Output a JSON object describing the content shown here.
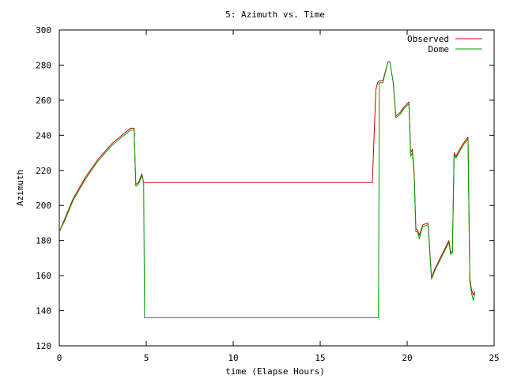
{
  "chart_data": {
    "type": "line",
    "title": "5: Azimuth vs. Time",
    "xlabel": "time (Elapse Hours)",
    "ylabel": "Azimuth",
    "xlim": [
      0,
      25
    ],
    "ylim": [
      120,
      300
    ],
    "xticks": [
      0,
      5,
      10,
      15,
      20,
      25
    ],
    "yticks": [
      120,
      140,
      160,
      180,
      200,
      220,
      240,
      260,
      280,
      300
    ],
    "grid": false,
    "legend_position": "top-right",
    "series": [
      {
        "name": "Observed",
        "color": "#cc0000",
        "x": [
          0,
          0.3,
          0.8,
          1.5,
          2.2,
          3.0,
          3.6,
          4.1,
          4.3,
          4.4,
          4.55,
          4.75,
          4.85,
          4.9,
          5.0,
          6.0,
          8.0,
          10.0,
          12.0,
          14.0,
          16.0,
          18.0,
          18.1,
          18.2,
          18.3,
          18.4,
          18.6,
          18.9,
          19.0,
          19.2,
          19.35,
          19.6,
          19.8,
          20.0,
          20.1,
          20.2,
          20.3,
          20.4,
          20.5,
          20.6,
          20.7,
          20.8,
          20.9,
          21.2,
          21.4,
          21.6,
          22.0,
          22.4,
          22.5,
          22.6,
          22.7,
          22.8,
          23.2,
          23.5,
          23.6,
          23.7,
          23.8,
          23.9
        ],
        "y": [
          185,
          192,
          204,
          216,
          226,
          235,
          240,
          244,
          244,
          212,
          213,
          218,
          213,
          213,
          213,
          213,
          213,
          213,
          213,
          213,
          213,
          213,
          240,
          266,
          270,
          271,
          271,
          282,
          282,
          270,
          251,
          253,
          256,
          258,
          259,
          230,
          232,
          219,
          187,
          186,
          183,
          186,
          189,
          190,
          159,
          164,
          172,
          180,
          173,
          174,
          230,
          228,
          235,
          239,
          159,
          152,
          149,
          151
        ]
      },
      {
        "name": "Dome",
        "color": "#00a000",
        "x": [
          0,
          0.3,
          0.8,
          1.5,
          2.2,
          3.0,
          3.6,
          4.1,
          4.3,
          4.4,
          4.55,
          4.75,
          4.85,
          4.9,
          5.0,
          6.0,
          8.0,
          10.0,
          12.0,
          14.0,
          16.0,
          18.0,
          18.2,
          18.35,
          18.4,
          18.6,
          18.9,
          19.0,
          19.2,
          19.35,
          19.6,
          19.8,
          20.0,
          20.1,
          20.2,
          20.3,
          20.4,
          20.5,
          20.6,
          20.7,
          20.8,
          20.9,
          21.2,
          21.4,
          21.6,
          22.0,
          22.4,
          22.5,
          22.6,
          22.7,
          22.8,
          23.2,
          23.5,
          23.6,
          23.7,
          23.8,
          23.9
        ],
        "y": [
          185,
          191,
          203,
          215,
          225,
          234,
          239,
          243,
          243,
          211,
          212,
          217,
          213,
          136,
          136,
          136,
          136,
          136,
          136,
          136,
          136,
          136,
          136,
          136,
          270,
          270,
          282,
          282,
          270,
          250,
          252,
          255,
          257,
          258,
          228,
          230,
          217,
          185,
          185,
          181,
          185,
          188,
          189,
          158,
          163,
          171,
          179,
          172,
          173,
          229,
          227,
          234,
          238,
          157,
          150,
          146,
          150
        ]
      }
    ]
  }
}
